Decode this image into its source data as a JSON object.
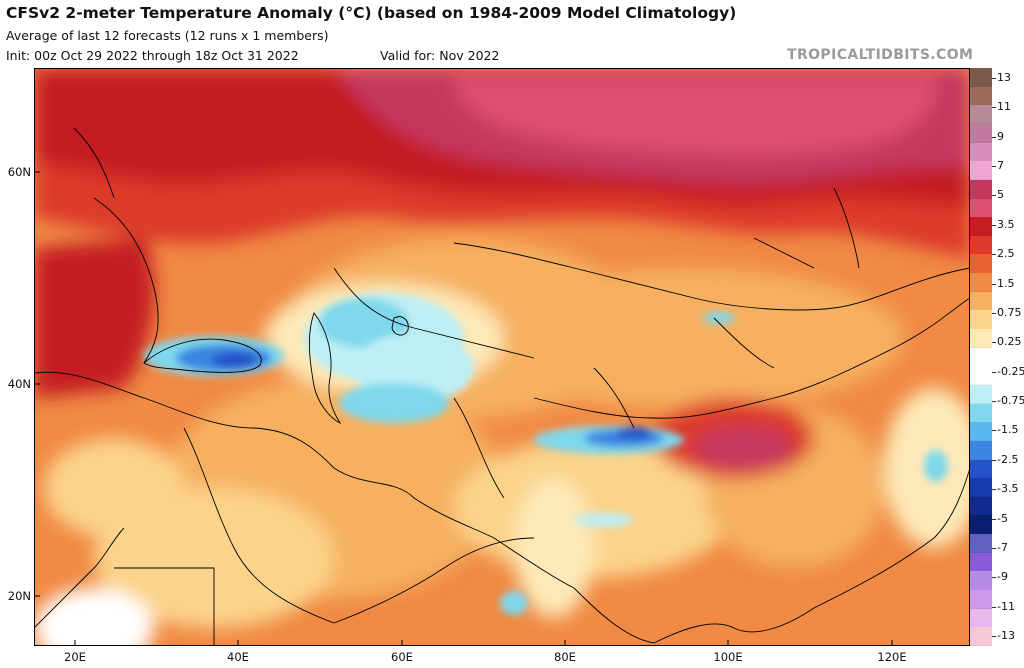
{
  "header": {
    "title": "CFSv2 2-meter Temperature Anomaly (°C) (based on 1984-2009 Model Climatology)",
    "subtitle": "Average of last 12 forecasts (12 runs x 1 members)",
    "init": "Init: 00z Oct 29 2022 through 18z Oct 31 2022",
    "valid": "Valid for: Nov 2022",
    "watermark": "TROPICALTIDBITS.COM"
  },
  "map": {
    "lat_labels": [
      "60N",
      "40N",
      "20N"
    ],
    "lon_labels": [
      "20E",
      "40E",
      "60E",
      "80E",
      "100E",
      "120E"
    ],
    "region": "Central and East Asia, Middle East, Eastern Europe",
    "features": [
      {
        "label": "warm-anomaly-russia",
        "shade": "strong-warm"
      },
      {
        "label": "warm-anomaly-tibet",
        "shade": "strong-warm"
      },
      {
        "label": "cool-anomaly-black-sea",
        "shade": "cool"
      },
      {
        "label": "cool-anomaly-caspian-aral",
        "shade": "cool"
      },
      {
        "label": "cool-anomaly-himalaya",
        "shade": "cool"
      }
    ]
  },
  "colorbar": {
    "label_values": [
      "13",
      "11",
      "9",
      "7",
      "5",
      "3.5",
      "2.5",
      "1.5",
      "0.75",
      "0.25",
      "-0.25",
      "-0.75",
      "-1.5",
      "-2.5",
      "-3.5",
      "-5",
      "-7",
      "-9",
      "-11",
      "-13"
    ],
    "colors": [
      "#7d5a48",
      "#9a6a5a",
      "#b68a96",
      "#c07aa0",
      "#d98cc0",
      "#f0a6d4",
      "#c43860",
      "#de5070",
      "#c41e24",
      "#dd3a2c",
      "#e9612f",
      "#f08a44",
      "#f6b060",
      "#fbd38a",
      "#fde9b8",
      "#ffffff",
      "#ffffff",
      "#bdeef4",
      "#7fd8ec",
      "#5ab8ec",
      "#3a86e0",
      "#2652c8",
      "#163ab0",
      "#102a90",
      "#0b1f70",
      "#6060c0",
      "#8a5ad8",
      "#b88ae8",
      "#cc9ae8",
      "#e6b8ec",
      "#f4c8d8"
    ]
  }
}
